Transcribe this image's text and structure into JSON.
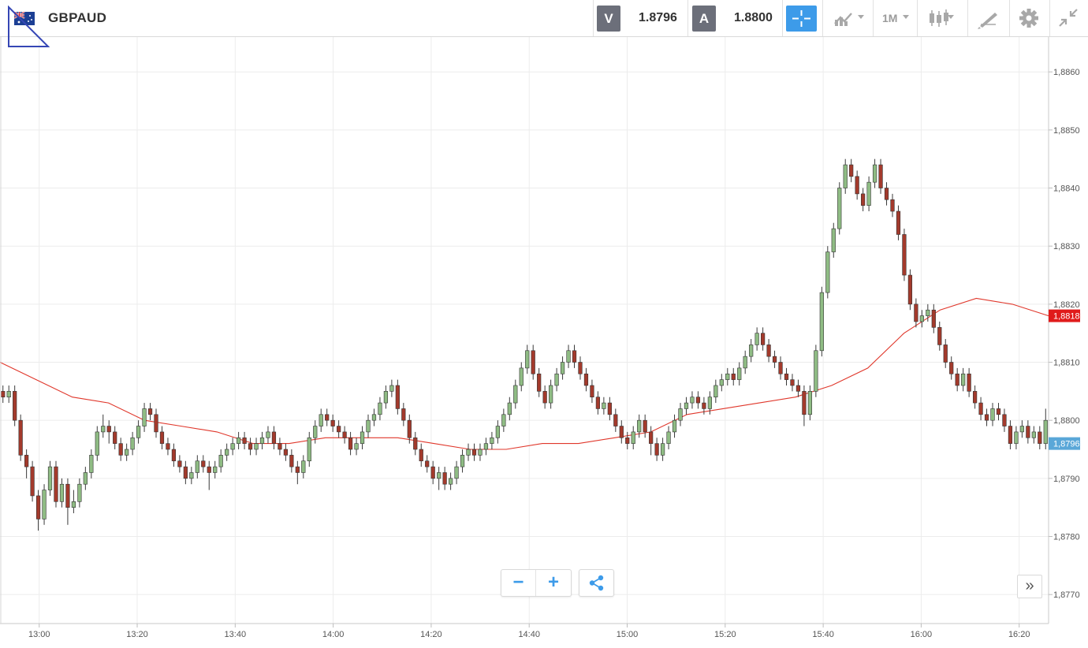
{
  "header": {
    "symbol": "GBPAUD",
    "sell_tag": "V",
    "sell_price": "1.8796",
    "buy_tag": "A",
    "buy_price": "1.8800",
    "timeframe": "1M"
  },
  "icons": {
    "flag": "uk-australia-flag-icon",
    "crosshair": "crosshair-icon",
    "chart_type": "line-chart-icon",
    "candles": "candlestick-icon",
    "draw": "drawing-tools-icon",
    "settings": "gear-icon",
    "collapse": "collapse-arrows-icon"
  },
  "controls": {
    "zoom_out": "−",
    "zoom_in": "+",
    "share": "share-icon",
    "scroll_right": "»"
  },
  "colors": {
    "up": "#8fbc84",
    "down": "#a33a2c",
    "ma": "#e0372b",
    "accent": "#3d9be9",
    "last_price_tag": "#5aa7d8",
    "ma_tag": "#e01b1b"
  },
  "chart_data": {
    "type": "candlestick",
    "title": "",
    "y_range": [
      1.8765,
      1.8866
    ],
    "y_ticks": [
      "1,8860",
      "1,8850",
      "1,8840",
      "1,8830",
      "1,8820",
      "1,8810",
      "1,8800",
      "1,8790",
      "1,8780",
      "1,8770"
    ],
    "x_ticks": [
      "13:00",
      "13:20",
      "13:40",
      "14:00",
      "14:20",
      "14:40",
      "15:00",
      "15:20",
      "15:40",
      "16:00",
      "16:20"
    ],
    "x_start_time": "12:52",
    "x_end_time": "16:26",
    "last_price_label": "1,8796",
    "ma_label": "1,8818",
    "candles": [
      [
        1.8805,
        1.8804,
        1.8806,
        1.8803
      ],
      [
        1.8804,
        1.8805,
        1.8806,
        1.8803
      ],
      [
        1.8805,
        1.88,
        1.8806,
        1.8799
      ],
      [
        1.88,
        1.8794,
        1.8801,
        1.8793
      ],
      [
        1.8794,
        1.8792,
        1.8795,
        1.879
      ],
      [
        1.8792,
        1.8787,
        1.8793,
        1.8786
      ],
      [
        1.8787,
        1.8783,
        1.8788,
        1.8781
      ],
      [
        1.8783,
        1.8788,
        1.8789,
        1.8782
      ],
      [
        1.8788,
        1.8792,
        1.8793,
        1.8787
      ],
      [
        1.8792,
        1.8786,
        1.8793,
        1.8785
      ],
      [
        1.8786,
        1.8789,
        1.879,
        1.8785
      ],
      [
        1.8789,
        1.8785,
        1.879,
        1.8782
      ],
      [
        1.8785,
        1.8786,
        1.8788,
        1.8784
      ],
      [
        1.8786,
        1.8789,
        1.879,
        1.8785
      ],
      [
        1.8789,
        1.8791,
        1.8792,
        1.8788
      ],
      [
        1.8791,
        1.8794,
        1.8795,
        1.879
      ],
      [
        1.8794,
        1.8798,
        1.8799,
        1.8793
      ],
      [
        1.8798,
        1.8799,
        1.8801,
        1.8797
      ],
      [
        1.8799,
        1.8798,
        1.88,
        1.8796
      ],
      [
        1.8798,
        1.8796,
        1.8799,
        1.8795
      ],
      [
        1.8796,
        1.8794,
        1.8797,
        1.8793
      ],
      [
        1.8794,
        1.8795,
        1.8796,
        1.8793
      ],
      [
        1.8795,
        1.8797,
        1.8798,
        1.8794
      ],
      [
        1.8797,
        1.8799,
        1.88,
        1.8796
      ],
      [
        1.8799,
        1.8802,
        1.8803,
        1.8798
      ],
      [
        1.8802,
        1.8801,
        1.8803,
        1.88
      ],
      [
        1.8801,
        1.8798,
        1.8802,
        1.8797
      ],
      [
        1.8798,
        1.8796,
        1.8799,
        1.8795
      ],
      [
        1.8796,
        1.8795,
        1.8797,
        1.8794
      ],
      [
        1.8795,
        1.8793,
        1.8796,
        1.8792
      ],
      [
        1.8793,
        1.8792,
        1.8794,
        1.8791
      ],
      [
        1.8792,
        1.879,
        1.8793,
        1.8789
      ],
      [
        1.879,
        1.8791,
        1.8792,
        1.8789
      ],
      [
        1.8791,
        1.8793,
        1.8794,
        1.879
      ],
      [
        1.8793,
        1.8792,
        1.8794,
        1.8791
      ],
      [
        1.8792,
        1.8791,
        1.8793,
        1.8788
      ],
      [
        1.8791,
        1.8792,
        1.8793,
        1.879
      ],
      [
        1.8792,
        1.8794,
        1.8795,
        1.8791
      ],
      [
        1.8794,
        1.8795,
        1.8796,
        1.8793
      ],
      [
        1.8795,
        1.8796,
        1.8797,
        1.8794
      ],
      [
        1.8796,
        1.8797,
        1.8798,
        1.8795
      ],
      [
        1.8797,
        1.8796,
        1.8798,
        1.8795
      ],
      [
        1.8796,
        1.8795,
        1.8797,
        1.8794
      ],
      [
        1.8795,
        1.8796,
        1.8797,
        1.8794
      ],
      [
        1.8796,
        1.8797,
        1.8798,
        1.8795
      ],
      [
        1.8797,
        1.8798,
        1.8799,
        1.8796
      ],
      [
        1.8798,
        1.8796,
        1.8799,
        1.8795
      ],
      [
        1.8796,
        1.8795,
        1.8797,
        1.8794
      ],
      [
        1.8795,
        1.8794,
        1.8796,
        1.8793
      ],
      [
        1.8794,
        1.8792,
        1.8795,
        1.8791
      ],
      [
        1.8792,
        1.8791,
        1.8793,
        1.8789
      ],
      [
        1.8791,
        1.8793,
        1.8794,
        1.879
      ],
      [
        1.8793,
        1.8797,
        1.8798,
        1.8792
      ],
      [
        1.8797,
        1.8799,
        1.88,
        1.8796
      ],
      [
        1.8799,
        1.8801,
        1.8802,
        1.8798
      ],
      [
        1.8801,
        1.88,
        1.8802,
        1.8799
      ],
      [
        1.88,
        1.8799,
        1.8801,
        1.8798
      ],
      [
        1.8799,
        1.8798,
        1.88,
        1.8797
      ],
      [
        1.8798,
        1.8797,
        1.8799,
        1.8796
      ],
      [
        1.8797,
        1.8795,
        1.8798,
        1.8794
      ],
      [
        1.8795,
        1.8796,
        1.8797,
        1.8794
      ],
      [
        1.8796,
        1.8798,
        1.8799,
        1.8795
      ],
      [
        1.8798,
        1.88,
        1.8801,
        1.8797
      ],
      [
        1.88,
        1.8801,
        1.8802,
        1.8799
      ],
      [
        1.8801,
        1.8803,
        1.8804,
        1.88
      ],
      [
        1.8803,
        1.8805,
        1.8806,
        1.8802
      ],
      [
        1.8805,
        1.8806,
        1.8807,
        1.8804
      ],
      [
        1.8806,
        1.8802,
        1.8807,
        1.8801
      ],
      [
        1.8802,
        1.88,
        1.8803,
        1.8799
      ],
      [
        1.88,
        1.8797,
        1.8801,
        1.8796
      ],
      [
        1.8797,
        1.8795,
        1.8798,
        1.8794
      ],
      [
        1.8795,
        1.8793,
        1.8796,
        1.8792
      ],
      [
        1.8793,
        1.8792,
        1.8794,
        1.8791
      ],
      [
        1.8792,
        1.879,
        1.8793,
        1.8789
      ],
      [
        1.879,
        1.8791,
        1.8792,
        1.8788
      ],
      [
        1.8791,
        1.8789,
        1.8792,
        1.8788
      ],
      [
        1.8789,
        1.879,
        1.8791,
        1.8788
      ],
      [
        1.879,
        1.8792,
        1.8793,
        1.8789
      ],
      [
        1.8792,
        1.8794,
        1.8795,
        1.8791
      ],
      [
        1.8794,
        1.8795,
        1.8796,
        1.8793
      ],
      [
        1.8795,
        1.8794,
        1.8796,
        1.8793
      ],
      [
        1.8794,
        1.8795,
        1.8796,
        1.8793
      ],
      [
        1.8795,
        1.8796,
        1.8797,
        1.8794
      ],
      [
        1.8796,
        1.8797,
        1.8798,
        1.8795
      ],
      [
        1.8797,
        1.8799,
        1.88,
        1.8796
      ],
      [
        1.8799,
        1.8801,
        1.8802,
        1.8798
      ],
      [
        1.8801,
        1.8803,
        1.8804,
        1.88
      ],
      [
        1.8803,
        1.8806,
        1.8807,
        1.8802
      ],
      [
        1.8806,
        1.8809,
        1.881,
        1.8805
      ],
      [
        1.8809,
        1.8812,
        1.8813,
        1.8808
      ],
      [
        1.8812,
        1.8808,
        1.8813,
        1.8807
      ],
      [
        1.8808,
        1.8805,
        1.8809,
        1.8804
      ],
      [
        1.8805,
        1.8803,
        1.8806,
        1.8802
      ],
      [
        1.8803,
        1.8806,
        1.8807,
        1.8802
      ],
      [
        1.8806,
        1.8808,
        1.8809,
        1.8805
      ],
      [
        1.8808,
        1.881,
        1.8811,
        1.8807
      ],
      [
        1.881,
        1.8812,
        1.8813,
        1.8809
      ],
      [
        1.8812,
        1.881,
        1.8813,
        1.8809
      ],
      [
        1.881,
        1.8808,
        1.8811,
        1.8807
      ],
      [
        1.8808,
        1.8806,
        1.8809,
        1.8805
      ],
      [
        1.8806,
        1.8804,
        1.8807,
        1.8803
      ],
      [
        1.8804,
        1.8802,
        1.8805,
        1.8801
      ],
      [
        1.8802,
        1.8803,
        1.8804,
        1.8801
      ],
      [
        1.8803,
        1.8801,
        1.8804,
        1.88
      ],
      [
        1.8801,
        1.8799,
        1.8802,
        1.8798
      ],
      [
        1.8799,
        1.8797,
        1.88,
        1.8796
      ],
      [
        1.8797,
        1.8796,
        1.8798,
        1.8795
      ],
      [
        1.8796,
        1.8798,
        1.8799,
        1.8795
      ],
      [
        1.8798,
        1.88,
        1.8801,
        1.8797
      ],
      [
        1.88,
        1.8798,
        1.8801,
        1.8797
      ],
      [
        1.8798,
        1.8796,
        1.8799,
        1.8794
      ],
      [
        1.8796,
        1.8794,
        1.8797,
        1.8793
      ],
      [
        1.8794,
        1.8796,
        1.8797,
        1.8793
      ],
      [
        1.8796,
        1.8798,
        1.8799,
        1.8795
      ],
      [
        1.8798,
        1.88,
        1.8801,
        1.8797
      ],
      [
        1.88,
        1.8802,
        1.8803,
        1.8799
      ],
      [
        1.8802,
        1.8803,
        1.8804,
        1.8801
      ],
      [
        1.8803,
        1.8804,
        1.8805,
        1.8802
      ],
      [
        1.8804,
        1.8803,
        1.8805,
        1.8802
      ],
      [
        1.8803,
        1.8802,
        1.8804,
        1.8801
      ],
      [
        1.8802,
        1.8804,
        1.8805,
        1.8801
      ],
      [
        1.8804,
        1.8806,
        1.8807,
        1.8803
      ],
      [
        1.8806,
        1.8807,
        1.8808,
        1.8805
      ],
      [
        1.8807,
        1.8808,
        1.8809,
        1.8806
      ],
      [
        1.8808,
        1.8807,
        1.8809,
        1.8806
      ],
      [
        1.8807,
        1.8809,
        1.881,
        1.8806
      ],
      [
        1.8809,
        1.8811,
        1.8812,
        1.8808
      ],
      [
        1.8811,
        1.8813,
        1.8814,
        1.881
      ],
      [
        1.8813,
        1.8815,
        1.8816,
        1.8812
      ],
      [
        1.8815,
        1.8813,
        1.8816,
        1.8812
      ],
      [
        1.8813,
        1.8811,
        1.8814,
        1.881
      ],
      [
        1.8811,
        1.881,
        1.8812,
        1.8809
      ],
      [
        1.881,
        1.8808,
        1.8811,
        1.8807
      ],
      [
        1.8808,
        1.8807,
        1.8809,
        1.8806
      ],
      [
        1.8807,
        1.8806,
        1.8808,
        1.8805
      ],
      [
        1.8806,
        1.8805,
        1.8807,
        1.8804
      ],
      [
        1.8805,
        1.8801,
        1.8806,
        1.8799
      ],
      [
        1.8801,
        1.8805,
        1.8806,
        1.88
      ],
      [
        1.8805,
        1.8812,
        1.8813,
        1.8804
      ],
      [
        1.8812,
        1.8822,
        1.8823,
        1.8811
      ],
      [
        1.8822,
        1.8829,
        1.883,
        1.8821
      ],
      [
        1.8829,
        1.8833,
        1.8834,
        1.8828
      ],
      [
        1.8833,
        1.884,
        1.8841,
        1.8832
      ],
      [
        1.884,
        1.8844,
        1.8845,
        1.8839
      ],
      [
        1.8844,
        1.8842,
        1.8845,
        1.8841
      ],
      [
        1.8842,
        1.8839,
        1.8843,
        1.8838
      ],
      [
        1.8839,
        1.8837,
        1.884,
        1.8836
      ],
      [
        1.8837,
        1.8841,
        1.8842,
        1.8836
      ],
      [
        1.8841,
        1.8844,
        1.8845,
        1.884
      ],
      [
        1.8844,
        1.884,
        1.8845,
        1.8839
      ],
      [
        1.884,
        1.8838,
        1.8841,
        1.8837
      ],
      [
        1.8838,
        1.8836,
        1.8839,
        1.8835
      ],
      [
        1.8836,
        1.8832,
        1.8837,
        1.8831
      ],
      [
        1.8832,
        1.8825,
        1.8833,
        1.8824
      ],
      [
        1.8825,
        1.882,
        1.8826,
        1.8819
      ],
      [
        1.882,
        1.8817,
        1.8821,
        1.8816
      ],
      [
        1.8817,
        1.8818,
        1.8819,
        1.8816
      ],
      [
        1.8818,
        1.8819,
        1.882,
        1.8817
      ],
      [
        1.8819,
        1.8816,
        1.882,
        1.8815
      ],
      [
        1.8816,
        1.8813,
        1.8817,
        1.8812
      ],
      [
        1.8813,
        1.881,
        1.8814,
        1.8809
      ],
      [
        1.881,
        1.8808,
        1.8811,
        1.8807
      ],
      [
        1.8808,
        1.8806,
        1.8809,
        1.8805
      ],
      [
        1.8806,
        1.8808,
        1.8809,
        1.8805
      ],
      [
        1.8808,
        1.8805,
        1.8809,
        1.8804
      ],
      [
        1.8805,
        1.8803,
        1.8806,
        1.8802
      ],
      [
        1.8803,
        1.8801,
        1.8804,
        1.88
      ],
      [
        1.8801,
        1.88,
        1.8802,
        1.8799
      ],
      [
        1.88,
        1.8802,
        1.8803,
        1.8799
      ],
      [
        1.8802,
        1.8801,
        1.8803,
        1.88
      ],
      [
        1.8801,
        1.8799,
        1.8802,
        1.8798
      ],
      [
        1.8799,
        1.8796,
        1.88,
        1.8795
      ],
      [
        1.8796,
        1.8798,
        1.8799,
        1.8795
      ],
      [
        1.8798,
        1.8799,
        1.88,
        1.8797
      ],
      [
        1.8799,
        1.8797,
        1.88,
        1.8796
      ],
      [
        1.8797,
        1.8798,
        1.8799,
        1.8796
      ],
      [
        1.8798,
        1.8796,
        1.8799,
        1.8795
      ],
      [
        1.8796,
        1.88,
        1.8802,
        1.8795
      ]
    ],
    "moving_average": [
      [
        1.881,
        1.8807,
        1.8804,
        1.8803,
        1.88,
        1.8799,
        1.8798,
        1.8796,
        1.8796,
        1.8797,
        1.8797,
        1.8797,
        1.8796,
        1.8795,
        1.8795,
        1.8796,
        1.8796,
        1.8797,
        1.8798,
        1.8801,
        1.8802,
        1.8803,
        1.8804,
        1.8806,
        1.8809,
        1.8815,
        1.8819,
        1.8821,
        1.882,
        1.8818
      ]
    ]
  }
}
